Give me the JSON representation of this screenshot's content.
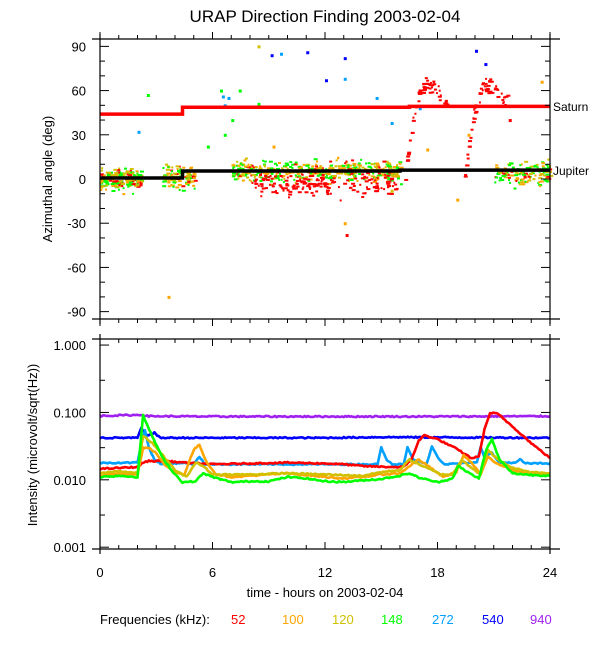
{
  "chart_data": [
    {
      "type": "scatter",
      "title": "URAP Direction Finding  2003-02-04",
      "xlabel": "time - hours on 2003-02-04",
      "ylabel": "Azimuthal angle (deg)",
      "xlim": [
        0,
        24
      ],
      "ylim": [
        -95,
        95
      ],
      "xticks": [
        "0",
        "6",
        "12",
        "18",
        "24"
      ],
      "yticks": [
        "90",
        "60",
        "30",
        "0",
        "-30",
        "-60",
        "-90"
      ],
      "reference_lines": [
        {
          "name": "Saturn",
          "color": "#ff0000",
          "segments": [
            [
              0,
              4.4,
              44.0
            ],
            [
              4.4,
              16.5,
              48.7
            ],
            [
              16.5,
              24,
              49.3
            ]
          ]
        },
        {
          "name": "Jupiter",
          "color": "#000000",
          "segments": [
            [
              0,
              4.4,
              0.7
            ],
            [
              4.4,
              16.0,
              5.4
            ],
            [
              16.0,
              24,
              6.0
            ]
          ]
        }
      ],
      "scatter_clusters": [
        {
          "t0": 0.0,
          "t1": 2.2,
          "center": 0,
          "spread": 5,
          "n": 220
        },
        {
          "t0": 3.3,
          "t1": 5.0,
          "center": 1,
          "spread": 6,
          "n": 120
        },
        {
          "t0": 7.0,
          "t1": 16.0,
          "center": 5,
          "spread": 5,
          "n": 520
        },
        {
          "t0": 8.0,
          "t1": 15.8,
          "center": -4,
          "spread": 5,
          "n": 160,
          "freqs": [
            "52"
          ]
        },
        {
          "t0": 16.2,
          "t1": 18.5,
          "center": 55,
          "spread": 9,
          "n": 60,
          "freqs": [
            "52"
          ]
        },
        {
          "t0": 19.4,
          "t1": 21.7,
          "center": 55,
          "spread": 9,
          "n": 60,
          "freqs": [
            "52"
          ]
        },
        {
          "t0": 21.0,
          "t1": 24.0,
          "center": 4,
          "spread": 6,
          "n": 140
        }
      ],
      "outliers": [
        [
          2.5,
          57,
          "148"
        ],
        [
          8.4,
          90,
          "120"
        ],
        [
          9.1,
          84,
          "540"
        ],
        [
          9.6,
          85,
          "272"
        ],
        [
          11.0,
          86,
          "540"
        ],
        [
          13.0,
          82,
          "540"
        ],
        [
          13.0,
          68,
          "272"
        ],
        [
          12.0,
          67,
          "540"
        ],
        [
          6.5,
          56,
          "272"
        ],
        [
          6.6,
          50,
          "272"
        ],
        [
          6.4,
          60,
          "148"
        ],
        [
          7.4,
          60,
          "148"
        ],
        [
          7.0,
          40,
          "148"
        ],
        [
          6.6,
          30,
          "148"
        ],
        [
          14.7,
          55,
          "272"
        ],
        [
          17.0,
          48,
          "272"
        ],
        [
          15.5,
          38,
          "272"
        ],
        [
          6.8,
          55,
          "272"
        ],
        [
          2.0,
          32,
          "272"
        ],
        [
          5.7,
          22,
          "148"
        ],
        [
          20.0,
          87,
          "540"
        ],
        [
          20.5,
          78,
          "540"
        ],
        [
          13.0,
          -30,
          "100"
        ],
        [
          13.1,
          -38,
          "52"
        ],
        [
          3.6,
          -80,
          "100"
        ],
        [
          19.0,
          -14,
          "100"
        ],
        [
          15.5,
          -8,
          "120"
        ],
        [
          21.8,
          40,
          "52"
        ],
        [
          17.4,
          20,
          "100"
        ],
        [
          19.6,
          30,
          "100"
        ],
        [
          23.5,
          66,
          "100"
        ],
        [
          9.2,
          22,
          "100"
        ],
        [
          8.4,
          51,
          "148"
        ]
      ]
    },
    {
      "type": "line",
      "xlabel": "time - hours on 2003-02-04",
      "ylabel": "Intensity (microvolt/sqrt(Hz))",
      "yscale": "log",
      "xlim": [
        0,
        24
      ],
      "ylim": [
        0.00094,
        1.23
      ],
      "xticks": [
        "0",
        "6",
        "12",
        "18",
        "24"
      ],
      "yticks": [
        "1.000",
        "0.100",
        "0.010",
        "0.001"
      ],
      "series": [
        {
          "name": "940",
          "color": "#a020f0",
          "points": [
            [
              0,
              0.089
            ],
            [
              2.2,
              0.092
            ],
            [
              2.6,
              0.088
            ],
            [
              6,
              0.087
            ],
            [
              12,
              0.087
            ],
            [
              18,
              0.087
            ],
            [
              24,
              0.088
            ]
          ]
        },
        {
          "name": "540",
          "color": "#0000ff",
          "points": [
            [
              0,
              0.042
            ],
            [
              2.0,
              0.042
            ],
            [
              2.2,
              0.058
            ],
            [
              2.5,
              0.045
            ],
            [
              2.9,
              0.05
            ],
            [
              3.2,
              0.042
            ],
            [
              7,
              0.042
            ],
            [
              12,
              0.042
            ],
            [
              15,
              0.043
            ],
            [
              24,
              0.042
            ]
          ]
        },
        {
          "name": "272",
          "color": "#00a0ff",
          "points": [
            [
              0,
              0.0178
            ],
            [
              2.0,
              0.018
            ],
            [
              2.2,
              0.035
            ],
            [
              2.4,
              0.055
            ],
            [
              2.6,
              0.03
            ],
            [
              2.9,
              0.02
            ],
            [
              3.3,
              0.017
            ],
            [
              4.5,
              0.018
            ],
            [
              5,
              0.017
            ],
            [
              5.3,
              0.022
            ],
            [
              5.6,
              0.017
            ],
            [
              14.8,
              0.017
            ],
            [
              15.0,
              0.03
            ],
            [
              15.3,
              0.02
            ],
            [
              15.6,
              0.017
            ],
            [
              16.2,
              0.017
            ],
            [
              16.4,
              0.03
            ],
            [
              16.7,
              0.02
            ],
            [
              17.4,
              0.017
            ],
            [
              17.7,
              0.031
            ],
            [
              18.1,
              0.02
            ],
            [
              18.4,
              0.017
            ],
            [
              20.1,
              0.018
            ],
            [
              20.3,
              0.031
            ],
            [
              20.5,
              0.022
            ],
            [
              20.9,
              0.025
            ],
            [
              21.3,
              0.018
            ],
            [
              22.2,
              0.018
            ],
            [
              22.4,
              0.02
            ],
            [
              22.7,
              0.0175
            ],
            [
              24,
              0.0175
            ]
          ]
        },
        {
          "name": "52",
          "color": "#ff0000",
          "points": [
            [
              0,
              0.0145
            ],
            [
              1,
              0.015
            ],
            [
              2,
              0.0155
            ],
            [
              2.3,
              0.018
            ],
            [
              2.6,
              0.019
            ],
            [
              3.5,
              0.019
            ],
            [
              4.5,
              0.018
            ],
            [
              6,
              0.017
            ],
            [
              8,
              0.0175
            ],
            [
              10,
              0.018
            ],
            [
              12,
              0.0175
            ],
            [
              13,
              0.017
            ],
            [
              14,
              0.016
            ],
            [
              15.5,
              0.0155
            ],
            [
              16.2,
              0.0155
            ],
            [
              16.6,
              0.02
            ],
            [
              17.0,
              0.038
            ],
            [
              17.3,
              0.046
            ],
            [
              18,
              0.04
            ],
            [
              19,
              0.029
            ],
            [
              19.8,
              0.021
            ],
            [
              20.2,
              0.022
            ],
            [
              20.5,
              0.055
            ],
            [
              20.8,
              0.098
            ],
            [
              21.2,
              0.096
            ],
            [
              22,
              0.062
            ],
            [
              23,
              0.035
            ],
            [
              24,
              0.021
            ]
          ]
        },
        {
          "name": "100",
          "color": "#ffa500",
          "points": [
            [
              0,
              0.0115
            ],
            [
              1,
              0.0125
            ],
            [
              2,
              0.012
            ],
            [
              2.3,
              0.03
            ],
            [
              2.6,
              0.03
            ],
            [
              3.0,
              0.025
            ],
            [
              3.5,
              0.016
            ],
            [
              4,
              0.013
            ],
            [
              4.5,
              0.012
            ],
            [
              5.0,
              0.028
            ],
            [
              5.3,
              0.033
            ],
            [
              5.7,
              0.018
            ],
            [
              6.2,
              0.012
            ],
            [
              7,
              0.011
            ],
            [
              9,
              0.012
            ],
            [
              10,
              0.0125
            ],
            [
              12,
              0.011
            ],
            [
              13,
              0.0105
            ],
            [
              14,
              0.011
            ],
            [
              15,
              0.012
            ],
            [
              16,
              0.0125
            ],
            [
              16.5,
              0.016
            ],
            [
              17,
              0.02
            ],
            [
              17.5,
              0.016
            ],
            [
              18.3,
              0.011
            ],
            [
              19,
              0.013
            ],
            [
              19.4,
              0.023
            ],
            [
              19.8,
              0.018
            ],
            [
              20.3,
              0.012
            ],
            [
              20.7,
              0.022
            ],
            [
              21.1,
              0.018
            ],
            [
              22,
              0.014
            ],
            [
              23,
              0.012
            ],
            [
              24,
              0.0125
            ]
          ]
        },
        {
          "name": "120",
          "color": "#d0c000",
          "points": [
            [
              0,
              0.0125
            ],
            [
              1,
              0.0135
            ],
            [
              2,
              0.0125
            ],
            [
              2.3,
              0.045
            ],
            [
              2.8,
              0.035
            ],
            [
              3.4,
              0.022
            ],
            [
              4,
              0.014
            ],
            [
              4.6,
              0.011
            ],
            [
              5.1,
              0.018
            ],
            [
              5.5,
              0.016
            ],
            [
              6,
              0.012
            ],
            [
              8,
              0.012
            ],
            [
              10,
              0.0125
            ],
            [
              12,
              0.012
            ],
            [
              14,
              0.0115
            ],
            [
              15,
              0.013
            ],
            [
              16,
              0.014
            ],
            [
              16.5,
              0.02
            ],
            [
              17,
              0.017
            ],
            [
              18.2,
              0.012
            ],
            [
              18.8,
              0.012
            ],
            [
              19.3,
              0.02
            ],
            [
              19.7,
              0.016
            ],
            [
              20.3,
              0.012
            ],
            [
              20.7,
              0.028
            ],
            [
              21.2,
              0.02
            ],
            [
              22,
              0.015
            ],
            [
              23,
              0.013
            ],
            [
              24,
              0.0125
            ]
          ]
        },
        {
          "name": "148",
          "color": "#00ff00",
          "points": [
            [
              0,
              0.011
            ],
            [
              1,
              0.0115
            ],
            [
              2,
              0.011
            ],
            [
              2.3,
              0.09
            ],
            [
              2.7,
              0.05
            ],
            [
              3.3,
              0.022
            ],
            [
              3.9,
              0.013
            ],
            [
              4.4,
              0.0092
            ],
            [
              5.1,
              0.0095
            ],
            [
              5.5,
              0.0125
            ],
            [
              6,
              0.011
            ],
            [
              7,
              0.0092
            ],
            [
              8,
              0.0095
            ],
            [
              9,
              0.0095
            ],
            [
              10,
              0.011
            ],
            [
              11,
              0.0105
            ],
            [
              12,
              0.0095
            ],
            [
              13,
              0.0093
            ],
            [
              14,
              0.0098
            ],
            [
              15,
              0.0103
            ],
            [
              16,
              0.0115
            ],
            [
              16.5,
              0.0125
            ],
            [
              17,
              0.0108
            ],
            [
              18,
              0.0092
            ],
            [
              18.8,
              0.0105
            ],
            [
              19.1,
              0.016
            ],
            [
              19.6,
              0.013
            ],
            [
              20.2,
              0.0105
            ],
            [
              20.6,
              0.028
            ],
            [
              20.9,
              0.04
            ],
            [
              21.3,
              0.02
            ],
            [
              22,
              0.0125
            ],
            [
              23,
              0.0118
            ],
            [
              24,
              0.0115
            ]
          ]
        }
      ]
    }
  ],
  "legend": {
    "label": "Frequencies (kHz):",
    "items": [
      {
        "label": "52",
        "color": "#ff0000"
      },
      {
        "label": "100",
        "color": "#ffa500"
      },
      {
        "label": "120",
        "color": "#d0c000"
      },
      {
        "label": "148",
        "color": "#00ff00"
      },
      {
        "label": "272",
        "color": "#00a0ff"
      },
      {
        "label": "540",
        "color": "#0000ff"
      },
      {
        "label": "940",
        "color": "#a020f0"
      }
    ]
  }
}
